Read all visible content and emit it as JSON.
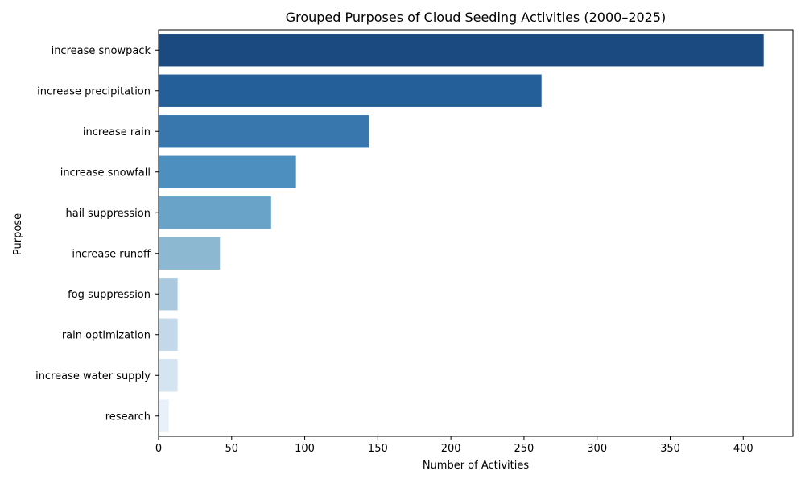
{
  "chart_data": {
    "type": "bar",
    "orientation": "horizontal",
    "title": "Grouped Purposes of Cloud Seeding Activities (2000–2025)",
    "xlabel": "Number of Activities",
    "ylabel": "Purpose",
    "categories": [
      "increase snowpack",
      "increase precipitation",
      "increase rain",
      "increase snowfall",
      "hail suppression",
      "increase runoff",
      "fog suppression",
      "rain optimization",
      "increase water supply",
      "research"
    ],
    "values": [
      414,
      262,
      144,
      94,
      77,
      42,
      13,
      13,
      13,
      7
    ],
    "xlim": [
      0,
      434
    ],
    "xticks": [
      0,
      50,
      100,
      150,
      200,
      250,
      300,
      350,
      400
    ],
    "colors": [
      "#1a4a80",
      "#245f9a",
      "#3777ae",
      "#4d8fbe",
      "#6aa3c8",
      "#8cb8d2",
      "#aac9df",
      "#c3d8e9",
      "#d5e4f1",
      "#e8f1f9"
    ],
    "grid": false,
    "legend": "none"
  }
}
